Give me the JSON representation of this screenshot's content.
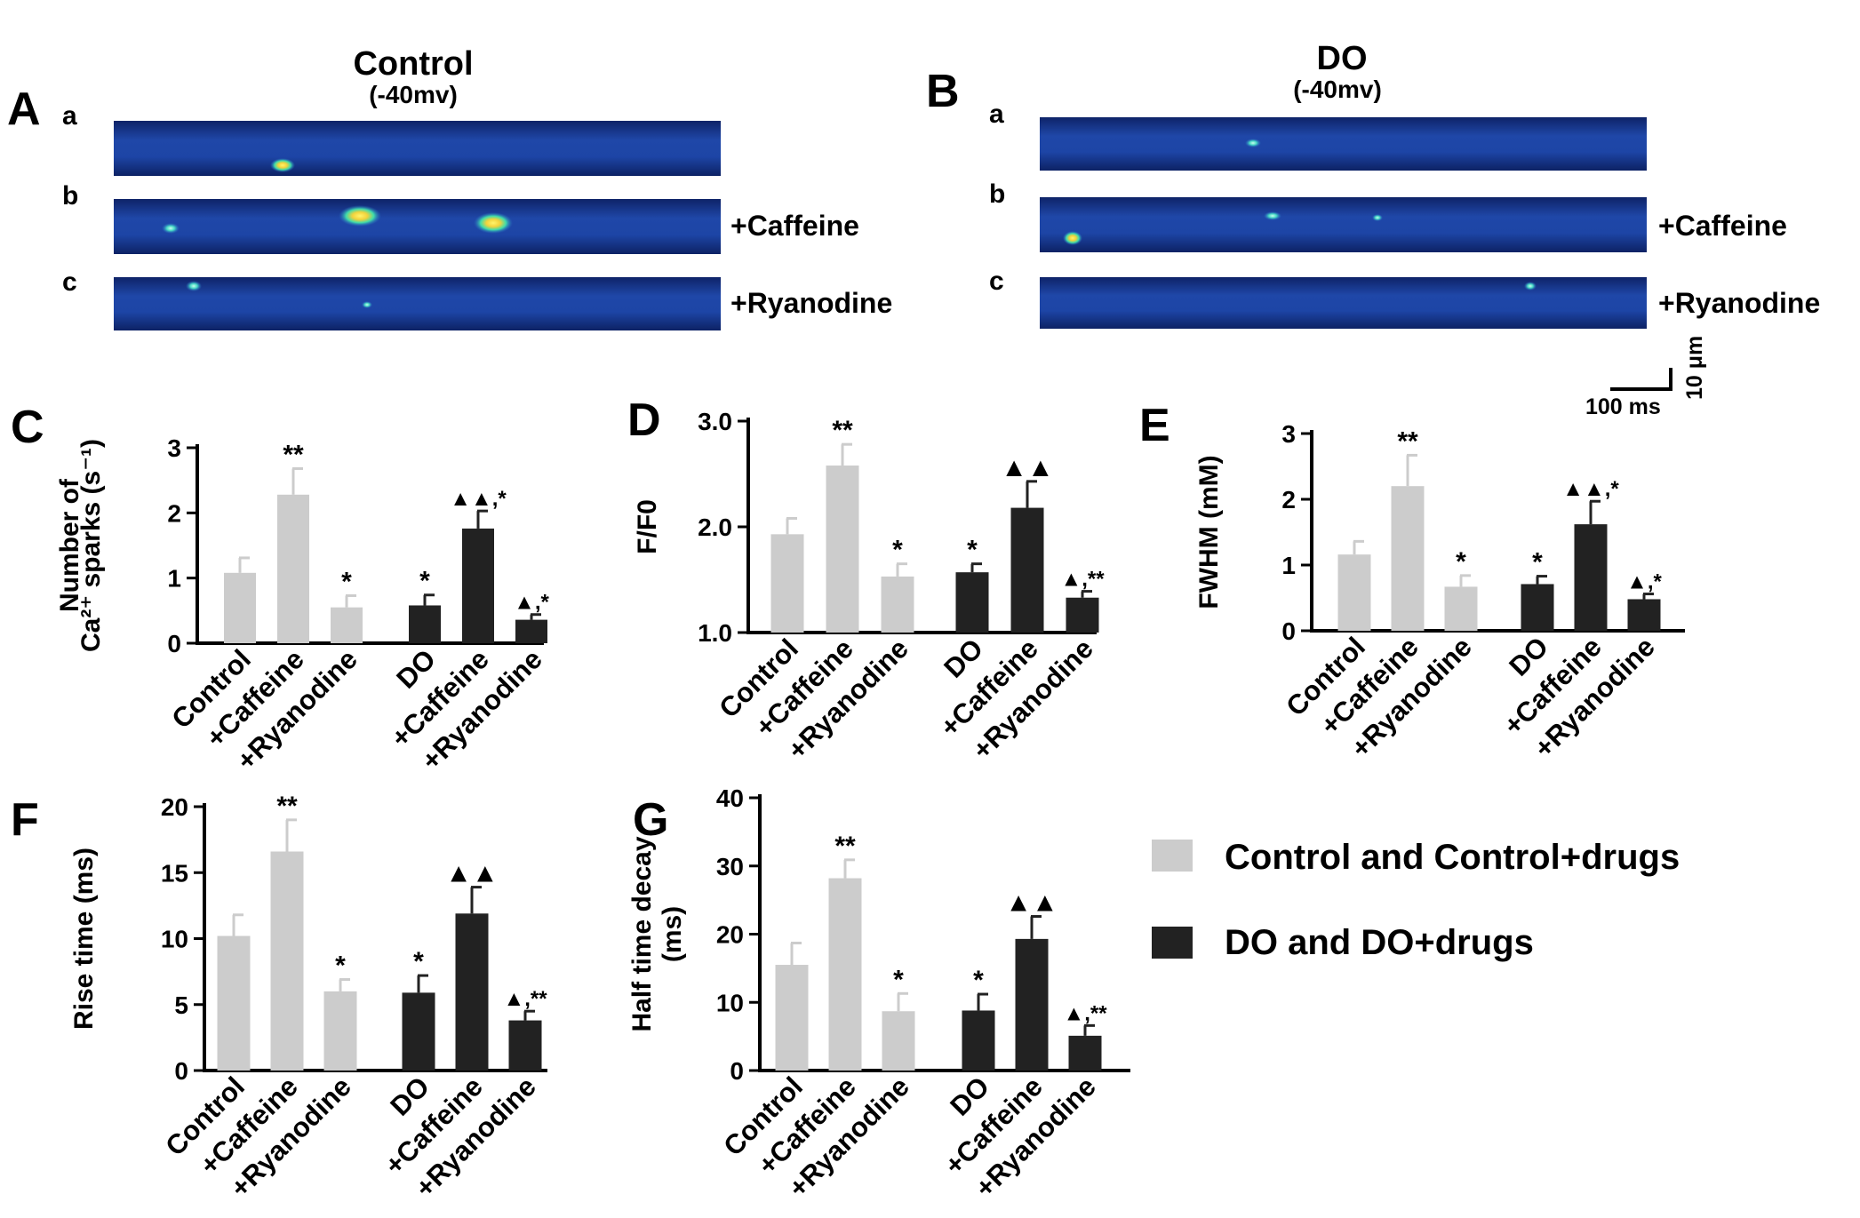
{
  "panels_top": {
    "A": {
      "letter": "A",
      "title": "Control",
      "subtitle": "(-40mv)",
      "rows": [
        {
          "letter": "a",
          "label": ""
        },
        {
          "letter": "b",
          "label": "+Caffeine"
        },
        {
          "letter": "c",
          "label": "+Ryanodine"
        }
      ]
    },
    "B": {
      "letter": "B",
      "title": "DO",
      "subtitle": "(-40mv)",
      "rows": [
        {
          "letter": "a",
          "label": ""
        },
        {
          "letter": "b",
          "label": "+Caffeine"
        },
        {
          "letter": "c",
          "label": "+Ryanodine"
        }
      ]
    },
    "scalebar": {
      "time": "100 ms",
      "space": "10 μm"
    },
    "colors": {
      "linescan_bg": "#1d3f9c",
      "linescan_edge": "#0b1a4a",
      "spark_core": "#f5e04a",
      "spark_mid": "#37d6a8"
    }
  },
  "legend": {
    "items": [
      {
        "label": "Control and Control+drugs",
        "color": "#cccccc"
      },
      {
        "label": "DO and DO+drugs",
        "color": "#222222"
      }
    ]
  },
  "chart_data": [
    {
      "panel": "C",
      "type": "bar",
      "ylabel_lines": [
        "Number of",
        "Ca²⁺ sparks (s⁻¹)"
      ],
      "ylim": [
        0,
        3
      ],
      "yticks": [
        "0",
        "1",
        "2",
        "3"
      ],
      "categories": [
        "Control",
        "+Caffeine",
        "+Ryanodine",
        "DO",
        "+Caffeine",
        "+Ryanodine"
      ],
      "values": [
        1.08,
        2.28,
        0.55,
        0.58,
        1.76,
        0.36
      ],
      "errors": [
        0.23,
        0.4,
        0.18,
        0.16,
        0.27,
        0.08
      ],
      "colors": [
        "#cccccc",
        "#cccccc",
        "#cccccc",
        "#222222",
        "#222222",
        "#222222"
      ],
      "annotations": [
        "",
        "**",
        "*",
        "*",
        "▲▲,*",
        "▲,*"
      ]
    },
    {
      "panel": "D",
      "type": "bar",
      "ylabel_lines": [
        "F/F0"
      ],
      "ylim": [
        1.0,
        3.0
      ],
      "yticks": [
        "1.0",
        "2.0",
        "3.0"
      ],
      "categories": [
        "Control",
        "+Caffeine",
        "+Ryanodine",
        "DO",
        "+Caffeine",
        "+Ryanodine"
      ],
      "values": [
        1.93,
        2.58,
        1.53,
        1.57,
        2.18,
        1.33
      ],
      "errors": [
        0.15,
        0.2,
        0.12,
        0.08,
        0.25,
        0.06
      ],
      "colors": [
        "#cccccc",
        "#cccccc",
        "#cccccc",
        "#222222",
        "#222222",
        "#222222"
      ],
      "annotations": [
        "",
        "**",
        "*",
        "*",
        "▲▲",
        "▲,**"
      ]
    },
    {
      "panel": "E",
      "type": "bar",
      "ylabel_lines": [
        "FWHM (mM)"
      ],
      "ylim": [
        0,
        3
      ],
      "yticks": [
        "0",
        "1",
        "2",
        "3"
      ],
      "categories": [
        "Control",
        "+Caffeine",
        "+Ryanodine",
        "DO",
        "+Caffeine",
        "+Ryanodine"
      ],
      "values": [
        1.16,
        2.2,
        0.67,
        0.71,
        1.62,
        0.48
      ],
      "errors": [
        0.2,
        0.47,
        0.17,
        0.12,
        0.35,
        0.08
      ],
      "colors": [
        "#cccccc",
        "#cccccc",
        "#cccccc",
        "#222222",
        "#222222",
        "#222222"
      ],
      "annotations": [
        "",
        "**",
        "*",
        "*",
        "▲▲,*",
        "▲,*"
      ]
    },
    {
      "panel": "F",
      "type": "bar",
      "ylabel_lines": [
        "Rise time (ms)"
      ],
      "ylim": [
        0,
        20
      ],
      "yticks": [
        "0",
        "5",
        "10",
        "15",
        "20"
      ],
      "categories": [
        "Control",
        "+Caffeine",
        "+Ryanodine",
        "DO",
        "+Caffeine",
        "+Ryanodine"
      ],
      "values": [
        10.2,
        16.6,
        6.0,
        5.9,
        11.9,
        3.8
      ],
      "errors": [
        1.6,
        2.4,
        0.9,
        1.3,
        2.0,
        0.7
      ],
      "colors": [
        "#cccccc",
        "#cccccc",
        "#cccccc",
        "#222222",
        "#222222",
        "#222222"
      ],
      "annotations": [
        "",
        "**",
        "*",
        "*",
        "▲▲",
        "▲,**"
      ]
    },
    {
      "panel": "G",
      "type": "bar",
      "ylabel_lines": [
        "Half time decay",
        "(ms)"
      ],
      "ylim": [
        0,
        40
      ],
      "yticks": [
        "0",
        "10",
        "20",
        "30",
        "40"
      ],
      "categories": [
        "Control",
        "+Caffeine",
        "+Ryanodine",
        "DO",
        "+Caffeine",
        "+Ryanodine"
      ],
      "values": [
        15.5,
        28.2,
        8.7,
        8.8,
        19.3,
        5.1
      ],
      "errors": [
        3.2,
        2.7,
        2.6,
        2.4,
        3.3,
        1.5
      ],
      "colors": [
        "#cccccc",
        "#cccccc",
        "#cccccc",
        "#222222",
        "#222222",
        "#222222"
      ],
      "annotations": [
        "",
        "**",
        "*",
        "*",
        "▲▲",
        "▲,**"
      ]
    }
  ]
}
